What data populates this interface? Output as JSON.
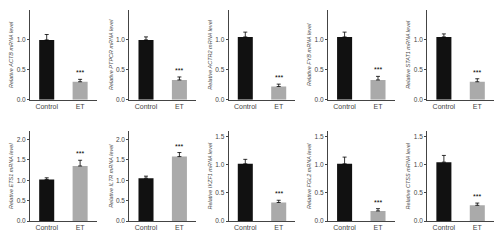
{
  "chart_data": [
    {
      "type": "bar",
      "ylabel": "Relative ACTB mRNA level",
      "categories": [
        "Control",
        "ET"
      ],
      "values": [
        1.0,
        0.3
      ],
      "errors": [
        0.09,
        0.04
      ],
      "colors": [
        "#111111",
        "#aaaaaa"
      ],
      "ylim": [
        0,
        1.5
      ],
      "yticks": [
        {
          "value": 0.0,
          "label": "0.0"
        },
        0.5,
        {
          "value": 1.0,
          "label": "1.0"
        }
      ],
      "annotations": [
        {
          "x": "ET",
          "text": "***"
        }
      ],
      "grid": false
    },
    {
      "type": "bar",
      "ylabel": "Relative PTPCR mRNA level",
      "categories": [
        "Control",
        "ET"
      ],
      "values": [
        1.0,
        0.33
      ],
      "errors": [
        0.05,
        0.05
      ],
      "colors": [
        "#111111",
        "#aaaaaa"
      ],
      "ylim": [
        0,
        1.5
      ],
      "yticks": [
        {
          "value": 0.0,
          "label": "0.0"
        },
        0.5,
        {
          "value": 1.0,
          "label": "1.0"
        }
      ],
      "annotations": [
        {
          "x": "ET",
          "text": "***"
        }
      ],
      "grid": false
    },
    {
      "type": "bar",
      "ylabel": "Relative ACTR2 mRNA level",
      "categories": [
        "Control",
        "ET"
      ],
      "values": [
        1.05,
        0.22
      ],
      "errors": [
        0.08,
        0.04
      ],
      "colors": [
        "#111111",
        "#aaaaaa"
      ],
      "ylim": [
        0,
        1.5
      ],
      "yticks": [
        {
          "value": 0.0,
          "label": "0.0"
        },
        0.5,
        {
          "value": 1.0,
          "label": "1.0"
        }
      ],
      "annotations": [
        {
          "x": "ET",
          "text": "***"
        }
      ],
      "grid": false
    },
    {
      "type": "bar",
      "ylabel": "Relative FYB mRNA level",
      "categories": [
        "Control",
        "ET"
      ],
      "values": [
        1.05,
        0.33
      ],
      "errors": [
        0.08,
        0.06
      ],
      "colors": [
        "#111111",
        "#aaaaaa"
      ],
      "ylim": [
        0,
        1.5
      ],
      "yticks": [
        {
          "value": 0.0,
          "label": "0.0"
        },
        0.5,
        {
          "value": 1.0,
          "label": "1.0"
        }
      ],
      "annotations": [
        {
          "x": "ET",
          "text": "***"
        }
      ],
      "grid": false
    },
    {
      "type": "bar",
      "ylabel": "Relative STAT1 mRNA level",
      "categories": [
        "Control",
        "ET"
      ],
      "values": [
        1.05,
        0.3
      ],
      "errors": [
        0.05,
        0.05
      ],
      "colors": [
        "#111111",
        "#aaaaaa"
      ],
      "ylim": [
        0,
        1.5
      ],
      "yticks": [
        {
          "value": 0.0,
          "label": "0.0"
        },
        0.5,
        {
          "value": 1.0,
          "label": "1.0"
        }
      ],
      "annotations": [
        {
          "x": "ET",
          "text": "***"
        }
      ],
      "grid": false
    },
    {
      "type": "bar",
      "ylabel": "Relative ETS1 mRNA level",
      "categories": [
        "Control",
        "ET"
      ],
      "values": [
        1.02,
        1.35
      ],
      "errors": [
        0.04,
        0.14
      ],
      "colors": [
        "#111111",
        "#aaaaaa"
      ],
      "ylim": [
        0,
        2.2
      ],
      "yticks": [
        {
          "value": 0.0,
          "label": "0.0"
        },
        0.5,
        {
          "value": 1.0,
          "label": "1.0"
        },
        1.5,
        {
          "value": 2.0,
          "label": "2.0"
        }
      ],
      "annotations": [
        {
          "x": "ET",
          "text": "***"
        }
      ],
      "grid": false
    },
    {
      "type": "bar",
      "ylabel": "Relative IL7R mRNA level",
      "categories": [
        "Control",
        "ET"
      ],
      "values": [
        1.05,
        1.58
      ],
      "errors": [
        0.05,
        0.1
      ],
      "colors": [
        "#111111",
        "#aaaaaa"
      ],
      "ylim": [
        0,
        2.2
      ],
      "yticks": [
        {
          "value": 0.0,
          "label": "0.0"
        },
        0.5,
        {
          "value": 1.0,
          "label": "1.0"
        },
        1.5,
        {
          "value": 2.0,
          "label": "2.0"
        }
      ],
      "annotations": [
        {
          "x": "ET",
          "text": "***"
        }
      ],
      "grid": false
    },
    {
      "type": "bar",
      "ylabel": "Relative IKZF1 mRNA level",
      "categories": [
        "Control",
        "ET"
      ],
      "values": [
        1.02,
        0.33
      ],
      "errors": [
        0.08,
        0.04
      ],
      "colors": [
        "#111111",
        "#aaaaaa"
      ],
      "ylim": [
        0,
        1.6
      ],
      "yticks": [
        {
          "value": 0.0,
          "label": "0.0"
        },
        0.5,
        {
          "value": 1.0,
          "label": "1.0"
        },
        1.5
      ],
      "annotations": [
        {
          "x": "ET",
          "text": "***"
        }
      ],
      "grid": false
    },
    {
      "type": "bar",
      "ylabel": "Relative FGL2 mRNA level",
      "categories": [
        "Control",
        "ET"
      ],
      "values": [
        1.02,
        0.18
      ],
      "errors": [
        0.12,
        0.04
      ],
      "colors": [
        "#111111",
        "#aaaaaa"
      ],
      "ylim": [
        0,
        1.6
      ],
      "yticks": [
        {
          "value": 0.0,
          "label": "0.0"
        },
        0.5,
        {
          "value": 1.0,
          "label": "1.0"
        },
        1.5
      ],
      "annotations": [
        {
          "x": "ET",
          "text": "***"
        }
      ],
      "grid": false
    },
    {
      "type": "bar",
      "ylabel": "Relative CTSS mRNA level",
      "categories": [
        "Control",
        "ET"
      ],
      "values": [
        1.05,
        0.28
      ],
      "errors": [
        0.12,
        0.04
      ],
      "colors": [
        "#111111",
        "#aaaaaa"
      ],
      "ylim": [
        0,
        1.6
      ],
      "yticks": [
        {
          "value": 0.0,
          "label": "0.0"
        },
        0.5,
        {
          "value": 1.0,
          "label": "1.0"
        },
        1.5
      ],
      "annotations": [
        {
          "x": "ET",
          "text": "***"
        }
      ],
      "grid": false
    }
  ]
}
